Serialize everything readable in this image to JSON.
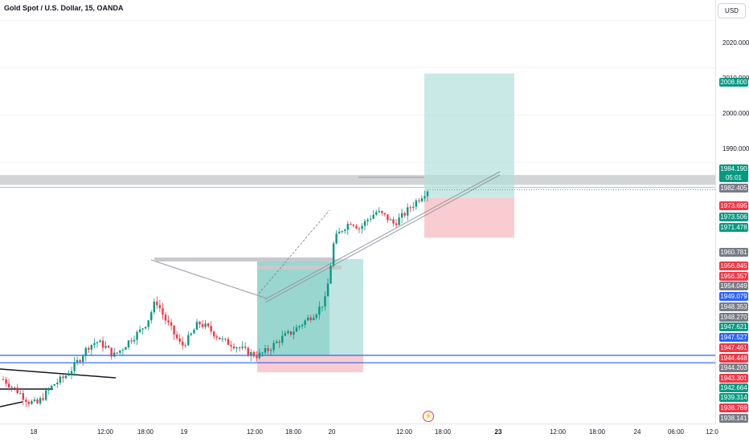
{
  "header": {
    "symbol_title": "Gold Spot / U.S. Dollar, 15, OANDA",
    "currency": "USD"
  },
  "price_axis": {
    "ticks": [
      "2020.000",
      "2010.000",
      "2000.000",
      "1990.000"
    ],
    "tags": [
      {
        "value": "2008.800",
        "color": "#089981"
      },
      {
        "value": "1984.190",
        "sub": "05:01",
        "color": "#089981"
      },
      {
        "value": "1982.405",
        "color": "#787b86"
      },
      {
        "value": "1973.695",
        "color": "#f23645"
      },
      {
        "value": "1973.506",
        "color": "#089981"
      },
      {
        "value": "1971.478",
        "color": "#089981"
      },
      {
        "value": "1960.781",
        "color": "#787b86"
      },
      {
        "value": "1956.845",
        "color": "#f23645"
      },
      {
        "value": "1956.357",
        "color": "#f23645"
      },
      {
        "value": "1954.049",
        "color": "#787b86"
      },
      {
        "value": "1949.079",
        "color": "#2962ff"
      },
      {
        "value": "1948.353",
        "color": "#787b86"
      },
      {
        "value": "1948.270",
        "color": "#787b86"
      },
      {
        "value": "1947.621",
        "color": "#089981"
      },
      {
        "value": "1947.527",
        "color": "#2962ff"
      },
      {
        "value": "1947.461",
        "color": "#f23645"
      },
      {
        "value": "1944.448",
        "color": "#f23645"
      },
      {
        "value": "1944.203",
        "color": "#787b86"
      },
      {
        "value": "1943.301",
        "color": "#f23645"
      },
      {
        "value": "1942.664",
        "color": "#089981"
      },
      {
        "value": "1939.314",
        "color": "#089981"
      },
      {
        "value": "1938.769",
        "color": "#f23645"
      },
      {
        "value": "1938.141",
        "color": "#787b86"
      }
    ]
  },
  "time_axis": {
    "labels": [
      {
        "text": "18",
        "bold": false
      },
      {
        "text": "12:00",
        "bold": false
      },
      {
        "text": "18:00",
        "bold": false
      },
      {
        "text": "19",
        "bold": false
      },
      {
        "text": "12:00",
        "bold": false
      },
      {
        "text": "18:00",
        "bold": false
      },
      {
        "text": "20",
        "bold": false
      },
      {
        "text": "12:00",
        "bold": false
      },
      {
        "text": "18:00",
        "bold": false
      },
      {
        "text": "23",
        "bold": true
      },
      {
        "text": "12:00",
        "bold": false
      },
      {
        "text": "18:00",
        "bold": false
      },
      {
        "text": "24",
        "bold": false
      },
      {
        "text": "06:00",
        "bold": false
      },
      {
        "text": "12:0",
        "bold": false
      }
    ]
  },
  "event_marker": {
    "icon": "lightning-icon",
    "glyph": "⚡"
  },
  "colors": {
    "up": "#089981",
    "down": "#f23645",
    "hline": "#2962ff",
    "profit_zone": "#b2dfdb",
    "loss_zone": "#f8c7cc",
    "resistance": "#c8c9cc"
  },
  "chart_data": {
    "type": "candlestick",
    "title": "Gold Spot / U.S. Dollar, 15, OANDA",
    "series_trend": [
      1944.0,
      1942.5,
      1941.0,
      1939.3,
      1938.8,
      1941.0,
      1943.0,
      1944.2,
      1946.0,
      1948.3,
      1951.0,
      1952.0,
      1951.0,
      1949.0,
      1950.5,
      1952.5,
      1954.0,
      1956.3,
      1960.8,
      1957.0,
      1954.0,
      1951.0,
      1953.0,
      1956.0,
      1955.0,
      1953.5,
      1952.0,
      1951.5,
      1950.5,
      1949.5,
      1949.0,
      1950.0,
      1951.5,
      1953.0,
      1954.0,
      1955.5,
      1957.0,
      1958.5,
      1961.0,
      1973.5,
      1976.0,
      1977.5,
      1976.0,
      1978.0,
      1979.5,
      1978.5,
      1977.0,
      1978.5,
      1980.5,
      1982.4,
      1984.2
    ],
    "horizontal_lines": [
      1949.079,
      1947.527
    ],
    "long_position_1": {
      "entry": 1949.0,
      "target": 1969.5,
      "stop": 1947.2
    },
    "long_position_2": {
      "entry": 1982.4,
      "target": 2008.8,
      "stop": 1974.0
    },
    "resistance_zone": [
      1985.2,
      1987.3
    ],
    "ylim": [
      1936.0,
      2023.0
    ]
  }
}
